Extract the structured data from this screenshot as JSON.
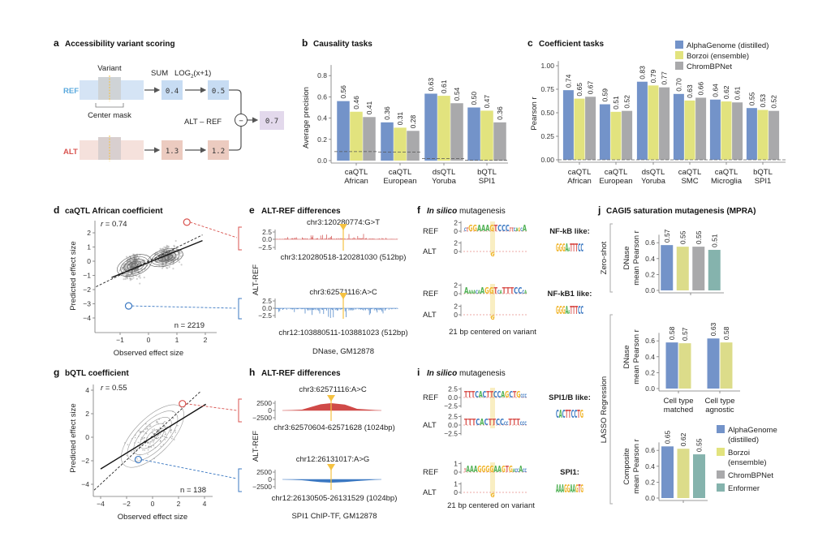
{
  "colors": {
    "alphagenome": "#7393c9",
    "borzoi": "#e2e37e",
    "chrombpnet": "#a9a9ab",
    "enformer": "#85b3ad",
    "ref": "#5aa9de",
    "alt": "#d9534f",
    "variant": "#f5c242",
    "track_pos": "#d04a48",
    "track_neg": "#3b78c2"
  },
  "panel_a": {
    "letter": "a",
    "title": "Accessibility variant scoring",
    "variant_label": "Variant",
    "center_mask_label": "Center mask",
    "ref_label": "REF",
    "alt_label": "ALT",
    "sum_label": "SUM",
    "log_label": "LOG",
    "log_sub": "2",
    "log_arg": "(x+1)",
    "ref_sum": "0.4",
    "ref_log": "0.5",
    "alt_sum": "1.3",
    "alt_log": "1.2",
    "diff_label": "ALT – REF",
    "minus_symbol": "−",
    "result": "0.7"
  },
  "panel_b": {
    "letter": "b",
    "title": "Causality tasks"
  },
  "panel_c": {
    "letter": "c",
    "title": "Coefficient tasks"
  },
  "legend_top": [
    {
      "label": "AlphaGenome (distilled)",
      "color": "#7393c9"
    },
    {
      "label": "Borzoi (ensemble)",
      "color": "#e2e37e"
    },
    {
      "label": "ChromBPNet",
      "color": "#a9a9ab"
    }
  ],
  "panel_d": {
    "letter": "d",
    "title": "caQTL African coefficient",
    "r_label": "r",
    "r_value": " = 0.74",
    "n_label": "n = 2219",
    "xlabel": "Observed effect size",
    "ylabel": "Predicted effect size",
    "xticks": [
      "−1",
      "0",
      "1",
      "2"
    ],
    "yticks": [
      "2",
      "1",
      "0",
      "−1",
      "−2",
      "−3",
      "−4"
    ]
  },
  "panel_e": {
    "letter": "e",
    "title": "ALT-REF differences",
    "ylabel": "ALT-REF",
    "tracks": [
      {
        "variant": "chr3:120280774:G>T",
        "region": "chr3:120280518-120281030 (512bp)",
        "ticks": [
          "2.5",
          "0.0",
          "−2.5"
        ]
      },
      {
        "variant": "chr3:62571116:A>C",
        "region": "chr12:103880511-103881023 (512bp)",
        "ticks": [
          "2.5",
          "0.0",
          "−2.5"
        ]
      }
    ],
    "caption": "DNase, GM12878"
  },
  "panel_f": {
    "letter": "f",
    "title_italic": "In silico",
    "title_rest": " mutagenesis",
    "rows": [
      {
        "ref": "REF",
        "alt": "ALT",
        "ticks_ref": [
          "2",
          "0"
        ],
        "ticks_alt": [
          "2",
          "0"
        ],
        "motif_label": "NF-kB like:",
        "ref_seq": "ctGGAAAGTCCCttcagcA",
        "alt_seq": "G",
        "motif_seq": "GGGAaTTTCC"
      },
      {
        "ref": "REF",
        "alt": "ALT",
        "ticks_ref": [
          "2",
          "0"
        ],
        "ticks_alt": [
          "2",
          "0"
        ],
        "motif_label": "NF-kB1 like:",
        "ref_seq": "AaaacaAGGTcaTTTCCca",
        "alt_seq": "G",
        "motif_seq": "GGGAaTTTCC"
      }
    ],
    "caption": "21 bp centered on variant"
  },
  "panel_g": {
    "letter": "g",
    "title": "bQTL coefficient",
    "r_label": "r",
    "r_value": " = 0.55",
    "n_label": "n = 138",
    "xlabel": "Observed effect size",
    "ylabel": "Predicted effect size",
    "xticks": [
      "−4",
      "−2",
      "0",
      "2",
      "4"
    ],
    "yticks": [
      "4",
      "2",
      "0",
      "−2",
      "−4"
    ]
  },
  "panel_h": {
    "letter": "h",
    "title": "ALT-REF differences",
    "ylabel": "ALT-REF",
    "tracks": [
      {
        "variant": "chr3:62571116:A>C",
        "region": "chr3:62570604-62571628 (1024bp)",
        "ticks": [
          "2500",
          "0",
          "−2500"
        ]
      },
      {
        "variant": "chr12:26131017:A>G",
        "region": "chr12:26130505-26131529 (1024bp)",
        "ticks": [
          "2500",
          "0",
          "−2500"
        ]
      }
    ],
    "caption": "SPI1 ChIP-TF, GM12878"
  },
  "panel_i": {
    "letter": "i",
    "title_italic": "In silico",
    "title_rest": " mutagenesis",
    "rows": [
      {
        "ref": "REF",
        "alt": "ALT",
        "ticks_ref": [
          "2.5",
          "0.0",
          "−2.5"
        ],
        "ticks_alt": [
          "2.5",
          "0.0",
          "−2.5"
        ],
        "motif_label": "SPI1/B like:",
        "ref_seq": "TTTCACTTCCAGCTGccc",
        "alt_seq": "TTTCACTTCCccTTTccc",
        "motif_seq": "CACTTCCTG"
      },
      {
        "ref": "REF",
        "alt": "ALT",
        "ticks_ref": [
          "1",
          "0"
        ],
        "ticks_alt": [
          "1",
          "0"
        ],
        "motif_label": "SPI1:",
        "ref_seq": "tAAAGGGGAAGTGaccAcc",
        "alt_seq": "G",
        "motif_seq": "AAAGGAAGTG"
      }
    ],
    "caption": "21 bp centered on variant"
  },
  "panel_j": {
    "letter": "j",
    "title": "CAGI5 saturation mutagenesis (MPRA)",
    "group_zero_shot": "Zero-shot",
    "group_lasso": "LASSO Regression",
    "ylabels": [
      [
        "DNase",
        "mean Pearson r"
      ],
      [
        "DNase",
        "mean Pearson r"
      ],
      [
        "Composite",
        "mean Pearson r"
      ]
    ],
    "legend": [
      {
        "label": [
          "AlphaGenome",
          "(distilled)"
        ],
        "color": "#7393c9"
      },
      {
        "label": [
          "Borzoi",
          "(ensemble)"
        ],
        "color": "#e2e37e"
      },
      {
        "label": [
          "ChromBPNet"
        ],
        "color": "#a9a9ab"
      },
      {
        "label": [
          "Enformer"
        ],
        "color": "#85b3ad"
      }
    ]
  },
  "chart_data": [
    {
      "id": "b",
      "type": "bar",
      "title": "Causality tasks",
      "ylabel": "Average precision",
      "ylim": [
        0,
        0.9
      ],
      "yticks": [
        0.0,
        0.2,
        0.4,
        0.6,
        0.8
      ],
      "categories": [
        [
          "caQTL",
          "African"
        ],
        [
          "caQTL",
          "European"
        ],
        [
          "dsQTL",
          "Yoruba"
        ],
        [
          "bQTL",
          "SPI1"
        ]
      ],
      "series": [
        {
          "name": "AlphaGenome (distilled)",
          "color": "#7393c9",
          "values": [
            0.56,
            0.36,
            0.63,
            0.5
          ]
        },
        {
          "name": "Borzoi (ensemble)",
          "color": "#e2e37e",
          "values": [
            0.46,
            0.31,
            0.61,
            0.47
          ]
        },
        {
          "name": "ChromBPNet",
          "color": "#a9a9ab",
          "values": [
            0.41,
            0.28,
            0.54,
            0.36
          ]
        }
      ],
      "baseline_dashed": [
        0.085,
        0.08,
        0.02,
        0.005
      ],
      "value_labels": [
        [
          "0.56",
          "0.46",
          "0.41"
        ],
        [
          "0.36",
          "0.31",
          "0.28"
        ],
        [
          "0.63",
          "0.61",
          "0.54"
        ],
        [
          "0.50",
          "0.47",
          "0.36"
        ]
      ]
    },
    {
      "id": "c",
      "type": "bar",
      "title": "Coefficient tasks",
      "ylabel": "Pearson r",
      "ylim": [
        0,
        1.05
      ],
      "yticks": [
        0.0,
        0.25,
        0.5,
        0.75,
        1.0
      ],
      "categories": [
        [
          "caQTL",
          "African"
        ],
        [
          "caQTL",
          "European"
        ],
        [
          "dsQTL",
          "Yoruba"
        ],
        [
          "caQTL",
          "SMC"
        ],
        [
          "caQTL",
          "Microglia"
        ],
        [
          "bQTL",
          "SPI1"
        ]
      ],
      "series": [
        {
          "name": "AlphaGenome (distilled)",
          "color": "#7393c9",
          "values": [
            0.74,
            0.59,
            0.83,
            0.7,
            0.64,
            0.55
          ]
        },
        {
          "name": "Borzoi (ensemble)",
          "color": "#e2e37e",
          "values": [
            0.65,
            0.51,
            0.79,
            0.63,
            0.62,
            0.53
          ]
        },
        {
          "name": "ChromBPNet",
          "color": "#a9a9ab",
          "values": [
            0.67,
            0.52,
            0.77,
            0.66,
            0.61,
            0.52
          ]
        }
      ],
      "value_labels": [
        [
          "0.74",
          "0.65",
          "0.67"
        ],
        [
          "0.59",
          "0.51",
          "0.52"
        ],
        [
          "0.83",
          "0.79",
          "0.77"
        ],
        [
          "0.70",
          "0.63",
          "0.66"
        ],
        [
          "0.64",
          "0.62",
          "0.61"
        ],
        [
          "0.55",
          "0.53",
          "0.52"
        ]
      ]
    },
    {
      "id": "j1",
      "type": "bar",
      "group": "Zero-shot",
      "ylabel": "DNase mean Pearson r",
      "ylim": [
        0,
        0.7
      ],
      "yticks": [
        0.0,
        0.2,
        0.4,
        0.6
      ],
      "categories": [
        []
      ],
      "series": [
        {
          "name": "AlphaGenome (distilled)",
          "color": "#7393c9",
          "values": [
            0.57
          ]
        },
        {
          "name": "Borzoi (ensemble)",
          "color": "#dcdc8a",
          "values": [
            0.55
          ]
        },
        {
          "name": "ChromBPNet",
          "color": "#a9a9ab",
          "values": [
            0.55
          ]
        },
        {
          "name": "Enformer",
          "color": "#85b3ad",
          "values": [
            0.51
          ]
        }
      ],
      "value_labels": [
        [
          "0.57",
          "0.55",
          "0.55",
          "0.51"
        ]
      ]
    },
    {
      "id": "j2",
      "type": "bar",
      "group": "LASSO Regression",
      "ylabel": "DNase mean Pearson r",
      "ylim": [
        0,
        0.7
      ],
      "yticks": [
        0.0,
        0.2,
        0.4,
        0.6
      ],
      "categories": [
        [
          "Cell type",
          "matched"
        ],
        [
          "Cell type",
          "agnostic"
        ]
      ],
      "series": [
        {
          "name": "AlphaGenome (distilled)",
          "color": "#7393c9",
          "values": [
            0.58,
            0.63
          ]
        },
        {
          "name": "Borzoi (ensemble)",
          "color": "#dcdc8a",
          "values": [
            0.57,
            0.58
          ]
        }
      ],
      "value_labels": [
        [
          "0.58",
          "0.57"
        ],
        [
          "0.63",
          "0.58"
        ]
      ]
    },
    {
      "id": "j3",
      "type": "bar",
      "group": "LASSO Regression",
      "ylabel": "Composite mean Pearson r",
      "ylim": [
        0,
        0.7
      ],
      "yticks": [
        0.0,
        0.2,
        0.4,
        0.6
      ],
      "categories": [
        []
      ],
      "series": [
        {
          "name": "AlphaGenome (distilled)",
          "color": "#7393c9",
          "values": [
            0.65
          ]
        },
        {
          "name": "Borzoi (ensemble)",
          "color": "#dcdc8a",
          "values": [
            0.62
          ]
        },
        {
          "name": "Enformer",
          "color": "#85b3ad",
          "values": [
            0.55
          ]
        }
      ],
      "value_labels": [
        [
          "0.65",
          "0.62",
          "0.55"
        ]
      ]
    }
  ]
}
